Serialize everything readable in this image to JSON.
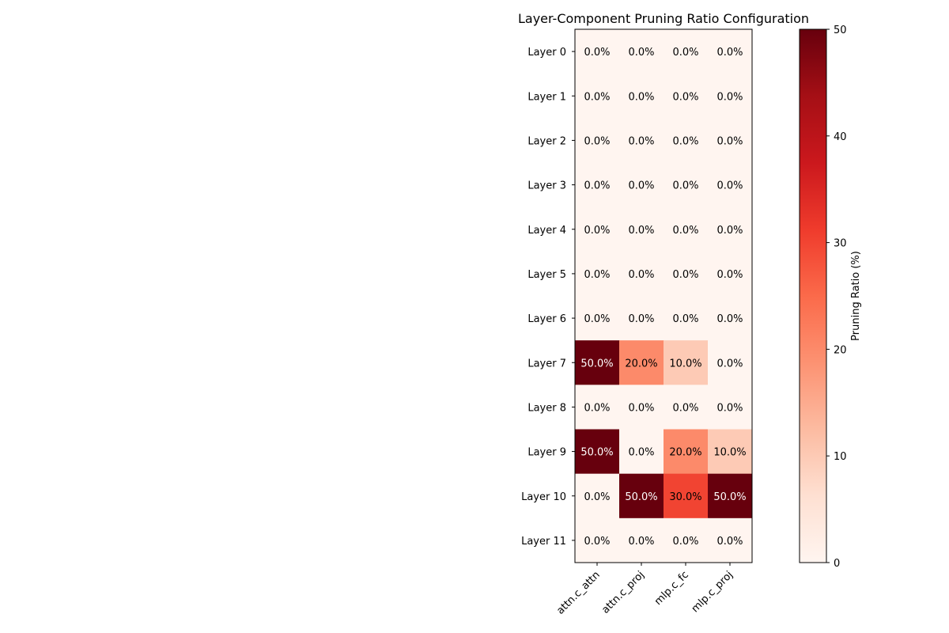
{
  "chart_data": {
    "type": "heatmap",
    "title": "Layer-Component Pruning Ratio Configuration",
    "xlabel": "",
    "ylabel": "",
    "columns": [
      "attn.c_attn",
      "attn.c_proj",
      "mlp.c_fc",
      "mlp.c_proj"
    ],
    "rows": [
      "Layer 0",
      "Layer 1",
      "Layer 2",
      "Layer 3",
      "Layer 4",
      "Layer 5",
      "Layer 6",
      "Layer 7",
      "Layer 8",
      "Layer 9",
      "Layer 10",
      "Layer 11"
    ],
    "values": [
      [
        0,
        0,
        0,
        0
      ],
      [
        0,
        0,
        0,
        0
      ],
      [
        0,
        0,
        0,
        0
      ],
      [
        0,
        0,
        0,
        0
      ],
      [
        0,
        0,
        0,
        0
      ],
      [
        0,
        0,
        0,
        0
      ],
      [
        0,
        0,
        0,
        0
      ],
      [
        50,
        20,
        10,
        0
      ],
      [
        0,
        0,
        0,
        0
      ],
      [
        50,
        0,
        20,
        10
      ],
      [
        0,
        50,
        30,
        50
      ],
      [
        0,
        0,
        0,
        0
      ]
    ],
    "value_format": "%",
    "colorbar": {
      "label": "Pruning Ratio (%)",
      "range": [
        0,
        50
      ],
      "ticks": [
        0,
        10,
        20,
        30,
        40,
        50
      ],
      "colormap": "Reds",
      "colors": [
        "#fff5f0",
        "#fee0d2",
        "#fcbba1",
        "#fc9272",
        "#fb6a4a",
        "#ef3b2c",
        "#cb181d",
        "#a50f15",
        "#67000d"
      ]
    },
    "grid": false
  }
}
